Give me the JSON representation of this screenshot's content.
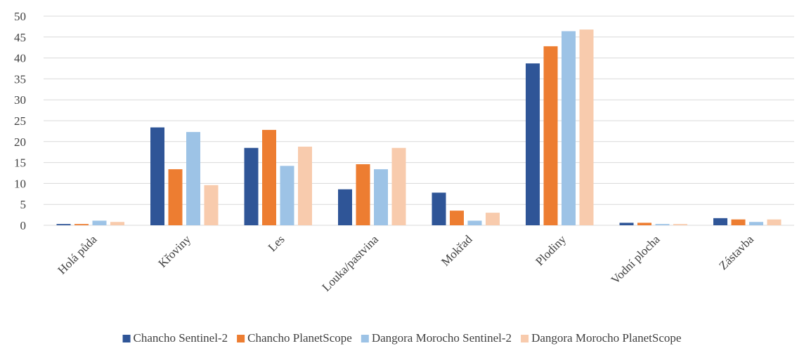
{
  "chart_data": {
    "type": "bar",
    "title": "",
    "xlabel": "",
    "ylabel": "",
    "ylim": [
      0,
      50
    ],
    "yticks": [
      0,
      5,
      10,
      15,
      20,
      25,
      30,
      35,
      40,
      45,
      50
    ],
    "grid": true,
    "legend_position": "bottom",
    "categories": [
      "Holá půda",
      "Křoviny",
      "Les",
      "Louka/pastvina",
      "Mokřad",
      "Plodiny",
      "Vodní plocha",
      "Zástavba"
    ],
    "series": [
      {
        "name": "Chancho Sentinel-2",
        "color": "#2f5597",
        "values": [
          0.3,
          23.4,
          18.5,
          8.6,
          7.8,
          38.7,
          0.6,
          1.7
        ]
      },
      {
        "name": "Chancho PlanetScope",
        "color": "#ed7d31",
        "values": [
          0.3,
          13.4,
          22.8,
          14.6,
          3.5,
          42.8,
          0.6,
          1.4
        ]
      },
      {
        "name": "Dangora Morocho Sentinel-2",
        "color": "#9dc3e6",
        "values": [
          1.1,
          22.3,
          14.2,
          13.4,
          1.1,
          46.4,
          0.3,
          0.8
        ]
      },
      {
        "name": "Dangora Morocho PlanetScope",
        "color": "#f8cbad",
        "values": [
          0.8,
          9.6,
          18.8,
          18.5,
          3.0,
          46.8,
          0.3,
          1.4
        ]
      }
    ]
  }
}
